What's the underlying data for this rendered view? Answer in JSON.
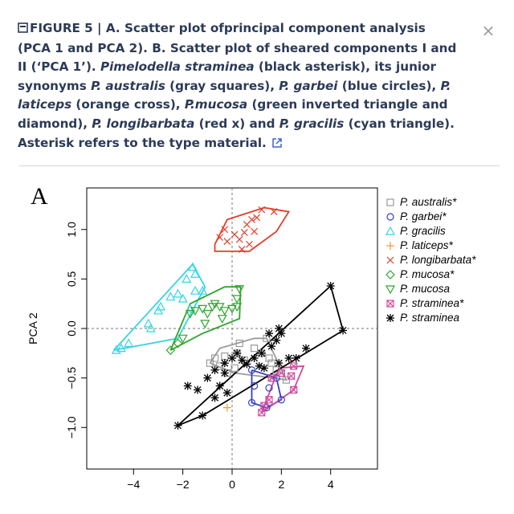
{
  "modal": {
    "close_label": "×",
    "caption": {
      "label": "FIGURE 5 |",
      "parts": [
        {
          "t": " A. Scatter plot ofprincipal component analysis (PCA 1 and PCA 2). B. Scatter plot of sheared components I and II (‘PCA 1’). ",
          "i": false
        },
        {
          "t": "Pimelodella straminea",
          "i": true
        },
        {
          "t": " (black asterisk), its junior synonyms ",
          "i": false
        },
        {
          "t": "P. australis",
          "i": true
        },
        {
          "t": " (gray squares), ",
          "i": false
        },
        {
          "t": "P. garbei",
          "i": true
        },
        {
          "t": " (blue circles), ",
          "i": false
        },
        {
          "t": "P. laticeps",
          "i": true
        },
        {
          "t": " (orange cross), ",
          "i": false
        },
        {
          "t": "P.mucosa",
          "i": true
        },
        {
          "t": " (green inverted triangle and diamond), ",
          "i": false
        },
        {
          "t": "P. longibarbata",
          "i": true
        },
        {
          "t": " (red x) and ",
          "i": false
        },
        {
          "t": "P. gracilis",
          "i": true
        },
        {
          "t": " (cyan triangle). Asterisk refers to the type material.",
          "i": false
        }
      ]
    }
  },
  "chart_data": {
    "type": "scatter",
    "panel_label": "A",
    "xlabel": "",
    "ylabel": "PCA 2",
    "xlim": [
      -5.9,
      5.9
    ],
    "ylim": [
      -1.42,
      1.42
    ],
    "xticks": [
      -4,
      -2,
      0,
      2,
      4
    ],
    "yticks": [
      -1.0,
      -0.5,
      0.0,
      0.5,
      1.0
    ],
    "xtick_labels": [
      "−4",
      "−2",
      "0",
      "2",
      "4"
    ],
    "ytick_labels": [
      "−1.0",
      "−0.5",
      "0.0",
      "0.5",
      "1.0"
    ],
    "reference_lines": {
      "x": 0,
      "y": 0
    },
    "legend_position": "top-right",
    "series": [
      {
        "name": "P. australis*",
        "marker": "square",
        "color": "#9a9a9a",
        "points": [
          [
            -0.9,
            -0.35
          ],
          [
            -0.7,
            -0.3
          ],
          [
            -0.5,
            -0.38
          ],
          [
            -0.3,
            -0.28
          ],
          [
            0.2,
            -0.25
          ],
          [
            0.5,
            -0.32
          ],
          [
            0.9,
            -0.2
          ],
          [
            1.2,
            -0.25
          ],
          [
            1.5,
            -0.3
          ],
          [
            1.7,
            -0.5
          ],
          [
            2.2,
            -0.52
          ],
          [
            1.8,
            -0.42
          ],
          [
            0.3,
            -0.15
          ],
          [
            1.4,
            -0.1
          ],
          [
            1.6,
            -0.35
          ],
          [
            0.1,
            -0.4
          ],
          [
            -0.2,
            -0.45
          ]
        ],
        "hull": [
          [
            -0.9,
            -0.35
          ],
          [
            -0.5,
            -0.2
          ],
          [
            0.9,
            -0.1
          ],
          [
            1.4,
            -0.1
          ],
          [
            2.2,
            -0.52
          ],
          [
            1.7,
            -0.5
          ],
          [
            0.1,
            -0.45
          ],
          [
            -0.9,
            -0.35
          ]
        ]
      },
      {
        "name": "P. garbei*",
        "marker": "circle",
        "color": "#3340c8",
        "points": [
          [
            0.8,
            -0.42
          ],
          [
            0.9,
            -0.58
          ],
          [
            0.8,
            -0.75
          ],
          [
            1.4,
            -0.8
          ],
          [
            2.0,
            -0.72
          ],
          [
            1.5,
            -0.6
          ],
          [
            1.8,
            -0.5
          ]
        ],
        "hull": [
          [
            0.8,
            -0.42
          ],
          [
            1.8,
            -0.5
          ],
          [
            2.0,
            -0.72
          ],
          [
            1.4,
            -0.8
          ],
          [
            0.8,
            -0.75
          ],
          [
            0.8,
            -0.42
          ]
        ]
      },
      {
        "name": "P. gracilis",
        "marker": "triangle",
        "color": "#33d6e6",
        "points": [
          [
            -1.6,
            0.62
          ],
          [
            -1.5,
            0.55
          ],
          [
            -1.85,
            0.5
          ],
          [
            -1.5,
            0.38
          ],
          [
            -1.7,
            0.2
          ],
          [
            -2.2,
            0.35
          ],
          [
            -2.0,
            0.3
          ],
          [
            -2.9,
            0.22
          ],
          [
            -3.0,
            0.18
          ],
          [
            -3.3,
            0.0
          ],
          [
            -3.4,
            0.05
          ],
          [
            -4.2,
            -0.15
          ],
          [
            -4.5,
            -0.2
          ],
          [
            -4.7,
            -0.22
          ],
          [
            -2.5,
            0.32
          ],
          [
            -1.2,
            0.38
          ]
        ],
        "hull": [
          [
            -4.8,
            -0.22
          ],
          [
            -1.6,
            0.65
          ],
          [
            -1.1,
            0.42
          ],
          [
            -2.2,
            -0.1
          ],
          [
            -4.8,
            -0.22
          ]
        ]
      },
      {
        "name": "P. laticeps*",
        "marker": "plus",
        "color": "#f19a33",
        "points": [
          [
            -0.2,
            -0.8
          ]
        ]
      },
      {
        "name": "P. longibarbata*",
        "marker": "x",
        "color": "#e33e2b",
        "points": [
          [
            -0.5,
            0.92
          ],
          [
            -0.2,
            0.88
          ],
          [
            0.1,
            0.95
          ],
          [
            0.3,
            0.9
          ],
          [
            0.6,
            1.05
          ],
          [
            0.8,
            1.1
          ],
          [
            1.0,
            1.12
          ],
          [
            1.2,
            1.2
          ],
          [
            0.9,
            0.98
          ],
          [
            0.4,
            0.8
          ],
          [
            0.7,
            0.85
          ],
          [
            -0.3,
            1.0
          ],
          [
            0.5,
            0.97
          ],
          [
            1.7,
            1.18
          ]
        ],
        "hull": [
          [
            -0.7,
            0.85
          ],
          [
            -0.2,
            1.1
          ],
          [
            1.3,
            1.22
          ],
          [
            2.3,
            1.18
          ],
          [
            1.8,
            0.98
          ],
          [
            0.7,
            0.78
          ],
          [
            -0.7,
            0.78
          ],
          [
            -0.7,
            0.85
          ]
        ]
      },
      {
        "name": "P. mucosa*",
        "marker": "diamond",
        "color": "#2fa52c",
        "points": [
          [
            -2.5,
            -0.22
          ],
          [
            -2.2,
            -0.15
          ]
        ]
      },
      {
        "name": "P. mucosa",
        "marker": "invtriangle",
        "color": "#2fa52c",
        "points": [
          [
            -1.7,
            0.15
          ],
          [
            -1.5,
            0.18
          ],
          [
            -1.2,
            0.2
          ],
          [
            -0.8,
            0.22
          ],
          [
            -0.7,
            0.25
          ],
          [
            -0.5,
            0.22
          ],
          [
            -0.3,
            0.18
          ],
          [
            0.0,
            0.2
          ],
          [
            0.2,
            0.22
          ],
          [
            0.3,
            0.4
          ],
          [
            -1.0,
            0.15
          ],
          [
            -2.0,
            -0.1
          ],
          [
            -1.1,
            0.05
          ],
          [
            -0.4,
            0.1
          ],
          [
            0.2,
            0.3
          ]
        ],
        "hull": [
          [
            -2.5,
            -0.22
          ],
          [
            -1.7,
            0.25
          ],
          [
            -0.3,
            0.42
          ],
          [
            0.35,
            0.42
          ],
          [
            0.3,
            0.1
          ],
          [
            -1.2,
            -0.05
          ],
          [
            -2.5,
            -0.22
          ]
        ]
      },
      {
        "name": "P. straminea*",
        "marker": "boxx",
        "color": "#d14aa0",
        "points": [
          [
            1.2,
            -0.85
          ],
          [
            1.3,
            -0.78
          ],
          [
            1.5,
            -0.72
          ],
          [
            2.5,
            -0.62
          ],
          [
            2.4,
            -0.48
          ],
          [
            2.0,
            -0.45
          ],
          [
            1.6,
            -0.5
          ],
          [
            2.5,
            -0.38
          ]
        ],
        "hull": [
          [
            1.2,
            -0.85
          ],
          [
            2.5,
            -0.62
          ],
          [
            2.9,
            -0.38
          ],
          [
            1.9,
            -0.4
          ],
          [
            1.2,
            -0.85
          ]
        ]
      },
      {
        "name": "P. straminea",
        "marker": "asterisk",
        "color": "#000000",
        "points": [
          [
            -2.2,
            -0.98
          ],
          [
            -1.2,
            -0.88
          ],
          [
            -1.4,
            -0.62
          ],
          [
            -1.8,
            -0.58
          ],
          [
            -1.0,
            -0.5
          ],
          [
            -0.7,
            -0.42
          ],
          [
            -0.3,
            -0.35
          ],
          [
            0.0,
            -0.3
          ],
          [
            0.2,
            -0.25
          ],
          [
            0.4,
            -0.32
          ],
          [
            0.6,
            -0.36
          ],
          [
            0.9,
            -0.3
          ],
          [
            1.1,
            -0.38
          ],
          [
            1.2,
            -0.25
          ],
          [
            1.6,
            -0.18
          ],
          [
            1.8,
            -0.12
          ],
          [
            2.0,
            -0.05
          ],
          [
            1.9,
            0.0
          ],
          [
            1.5,
            -0.05
          ],
          [
            1.3,
            -0.4
          ],
          [
            1.9,
            -0.35
          ],
          [
            2.3,
            -0.3
          ],
          [
            2.6,
            -0.3
          ],
          [
            3.0,
            -0.2
          ],
          [
            4.0,
            0.43
          ],
          [
            4.5,
            -0.02
          ],
          [
            -0.5,
            -0.58
          ],
          [
            -0.2,
            -0.65
          ],
          [
            -0.7,
            -0.7
          ],
          [
            -0.3,
            -0.45
          ]
        ],
        "hull": [
          [
            -2.2,
            -0.98
          ],
          [
            4.0,
            0.43
          ],
          [
            4.5,
            -0.02
          ],
          [
            -1.2,
            -0.88
          ],
          [
            -2.2,
            -0.98
          ]
        ]
      }
    ]
  }
}
